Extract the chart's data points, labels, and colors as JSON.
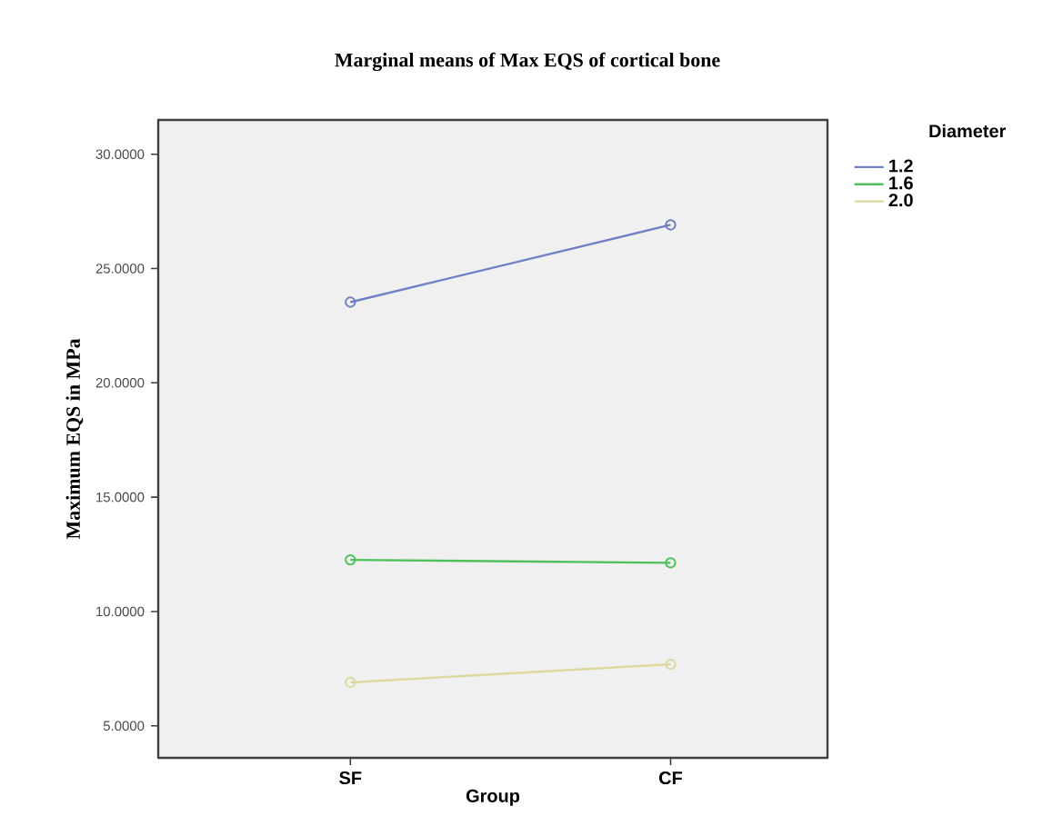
{
  "chart_data": {
    "type": "line",
    "title": "Marginal means of Max EQS of cortical bone",
    "xlabel": "Group",
    "ylabel": "Maximum EQS in MPa",
    "legend_title": "Diameter",
    "categories": [
      "SF",
      "CF"
    ],
    "series": [
      {
        "name": "1.2",
        "color": "#6f7fc6",
        "values": [
          23.53,
          26.91
        ]
      },
      {
        "name": "1.6",
        "color": "#4fc15a",
        "values": [
          12.26,
          12.13
        ]
      },
      {
        "name": "2.0",
        "color": "#dcd8a0",
        "values": [
          6.9,
          7.69
        ]
      }
    ],
    "ylim": [
      3.6,
      31.5
    ],
    "yticks": [
      {
        "value": 5,
        "label": "5.0000"
      },
      {
        "value": 10,
        "label": "10.0000"
      },
      {
        "value": 15,
        "label": "15.0000"
      },
      {
        "value": 20,
        "label": "20.0000"
      },
      {
        "value": 25,
        "label": "25.0000"
      },
      {
        "value": 30,
        "label": "30.0000"
      }
    ],
    "marker": "circle",
    "legend": "right",
    "grid": false
  }
}
